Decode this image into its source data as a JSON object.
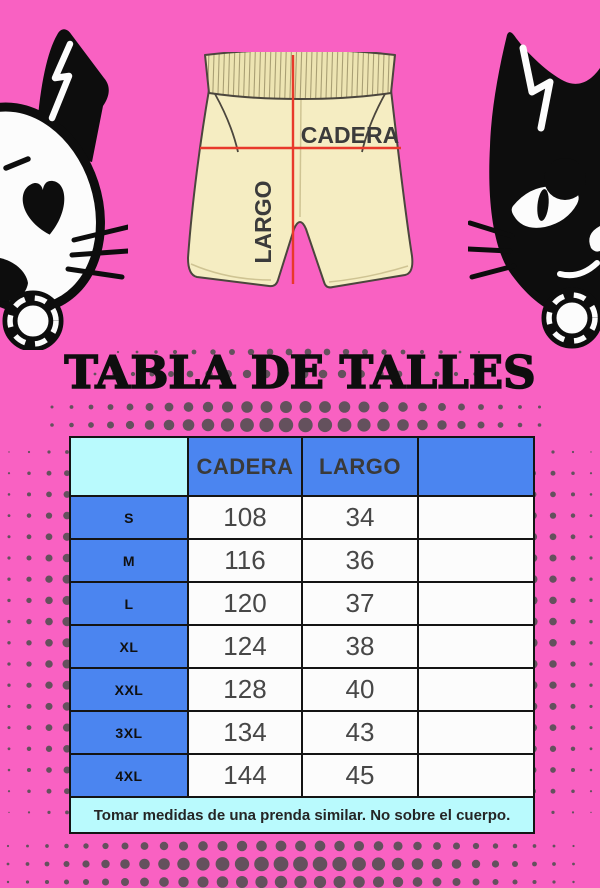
{
  "title": "TABLA DE TALLES",
  "diagram": {
    "hip_label": "CADERA",
    "length_label": "LARGO"
  },
  "illustrations": {
    "left": "white-skull-cat-icon",
    "right": "black-cat-icon",
    "center": "shorts-measurement-diagram"
  },
  "table": {
    "columns": [
      "",
      "CADERA",
      "LARGO",
      ""
    ],
    "rows": [
      {
        "size": "S",
        "cadera": "108",
        "largo": "34",
        "extra": ""
      },
      {
        "size": "M",
        "cadera": "116",
        "largo": "36",
        "extra": ""
      },
      {
        "size": "L",
        "cadera": "120",
        "largo": "37",
        "extra": ""
      },
      {
        "size": "XL",
        "cadera": "124",
        "largo": "38",
        "extra": ""
      },
      {
        "size": "XXL",
        "cadera": "128",
        "largo": "40",
        "extra": ""
      },
      {
        "size": "3XL",
        "cadera": "134",
        "largo": "43",
        "extra": ""
      },
      {
        "size": "4XL",
        "cadera": "144",
        "largo": "45",
        "extra": ""
      }
    ],
    "note": "Tomar medidas de una prenda similar. No sobre el cuerpo."
  },
  "colors": {
    "background_pink": "#F961C2",
    "header_blue": "#4B85F0",
    "accent_cyan": "#B9FAFD",
    "measure_line_red": "#E8392B",
    "halftone_gray": "#4F4F4F",
    "shorts_cream": "#F5EDC2"
  }
}
